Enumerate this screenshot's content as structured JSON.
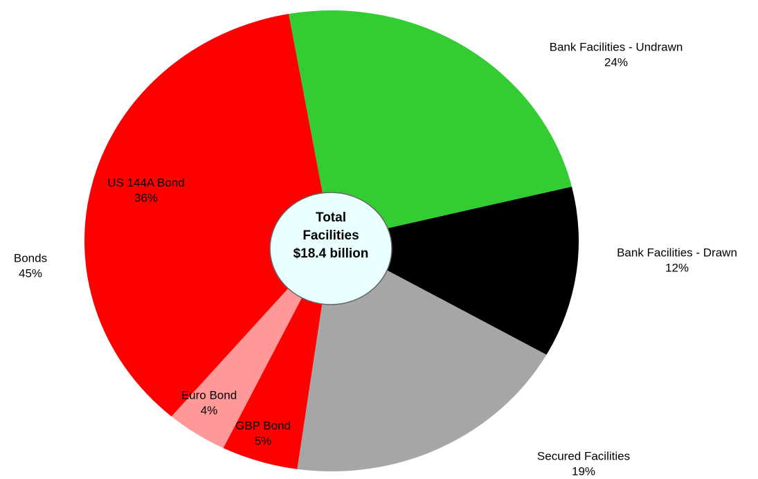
{
  "chart_data": {
    "type": "pie",
    "categories": [
      "Bank Facilities - Undrawn",
      "Bank Facilities - Drawn",
      "Secured Facilities",
      "GBP Bond",
      "Euro Bond",
      "US 144A Bond"
    ],
    "values": [
      24,
      12,
      19,
      5,
      4,
      36
    ],
    "value_labels": [
      "24%",
      "12%",
      "19%",
      "5%",
      "4%",
      "36%"
    ],
    "colors": [
      "#33cc33",
      "#000000",
      "#a6a6a6",
      "#ff0000",
      "#ff9999",
      "#ff0000"
    ],
    "groups": [
      {
        "name": "Bonds",
        "value_label": "45%"
      }
    ],
    "center_label": [
      "Total",
      "Facilities",
      "$18.4 billion"
    ]
  }
}
